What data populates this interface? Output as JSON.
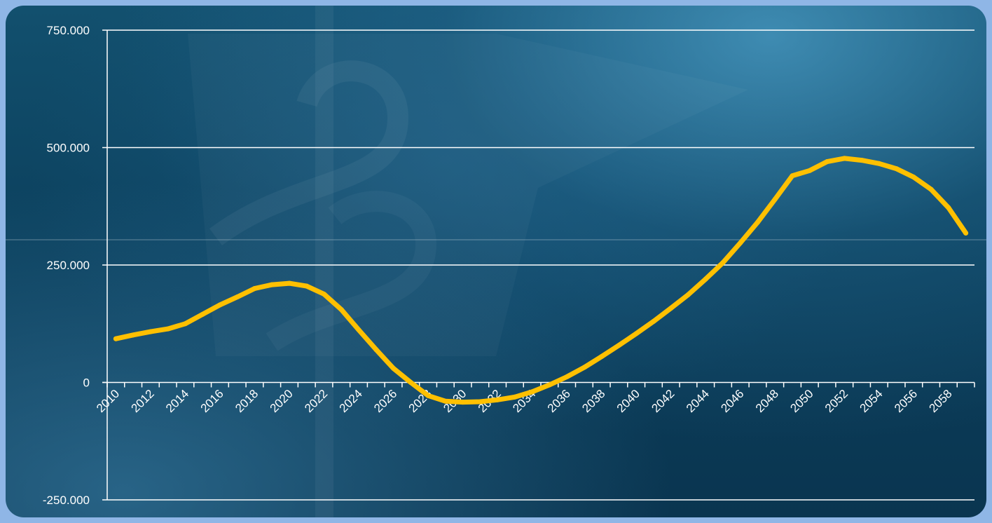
{
  "chart_data": {
    "type": "line",
    "title": "",
    "xlabel": "",
    "ylabel": "",
    "ylim": [
      -250000,
      750000
    ],
    "y_ticks": [
      750000,
      500000,
      250000,
      0,
      -250000
    ],
    "y_tick_labels": [
      "750.000",
      "500.000",
      "250.000",
      "0",
      "-250.000"
    ],
    "x": [
      2010,
      2011,
      2012,
      2013,
      2014,
      2015,
      2016,
      2017,
      2018,
      2019,
      2020,
      2021,
      2022,
      2023,
      2024,
      2025,
      2026,
      2027,
      2028,
      2029,
      2030,
      2031,
      2032,
      2033,
      2034,
      2035,
      2036,
      2037,
      2038,
      2039,
      2040,
      2041,
      2042,
      2043,
      2044,
      2045,
      2046,
      2047,
      2048,
      2049,
      2050,
      2051,
      2052,
      2053,
      2054,
      2055,
      2056,
      2057,
      2058,
      2059
    ],
    "x_tick_labels": [
      "2010",
      "2012",
      "2014",
      "2016",
      "2018",
      "2020",
      "2022",
      "2024",
      "2026",
      "2028",
      "2030",
      "2032",
      "2034",
      "2036",
      "2038",
      "2040",
      "2042",
      "2044",
      "2046",
      "2048",
      "2050",
      "2052",
      "2054",
      "2056",
      "2058"
    ],
    "series": [
      {
        "color": "#ffc000",
        "values": [
          93000,
          101000,
          108000,
          114000,
          125000,
          145000,
          165000,
          182000,
          200000,
          208000,
          211000,
          205000,
          188000,
          155000,
          112000,
          70000,
          30000,
          0,
          -28000,
          -40000,
          -42000,
          -41000,
          -37000,
          -31000,
          -20000,
          -5000,
          12000,
          32000,
          55000,
          79000,
          104000,
          130000,
          158000,
          187000,
          220000,
          255000,
          297000,
          341000,
          390000,
          440000,
          451000,
          470000,
          477000,
          473000,
          466000,
          455000,
          437000,
          411000,
          372000,
          318000
        ]
      }
    ],
    "grid": true,
    "legend": "none"
  }
}
